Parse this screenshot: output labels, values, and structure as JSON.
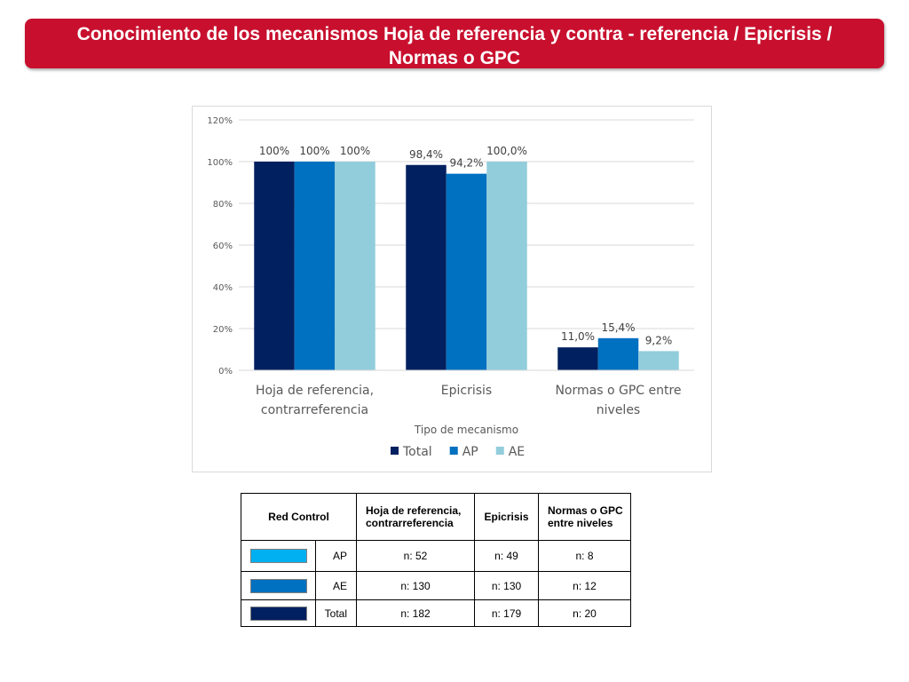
{
  "header": {
    "title": "Conocimiento de los mecanismos Hoja de referencia y contra - referencia / Epicrisis / Normas o GPC"
  },
  "colors": {
    "banner": "#c8102e",
    "total": "#002060",
    "ap": "#0070c0",
    "ae": "#92cddc",
    "table_ap_swatch": "#00b0f0",
    "table_ae_swatch": "#0070c0",
    "table_total_swatch": "#002060"
  },
  "chart_data": {
    "type": "bar",
    "categories": [
      [
        "Hoja de referencia,",
        "contrarreferencia"
      ],
      [
        "Epicrisis"
      ],
      [
        "Normas o GPC entre",
        "niveles"
      ]
    ],
    "series": [
      {
        "name": "Total",
        "color": "#002060",
        "values": [
          100,
          98.4,
          11.0
        ],
        "labels": [
          "100%",
          "98,4%",
          "11,0%"
        ]
      },
      {
        "name": "AP",
        "color": "#0070c0",
        "values": [
          100,
          94.2,
          15.4
        ],
        "labels": [
          "100%",
          "94,2%",
          "15,4%"
        ]
      },
      {
        "name": "AE",
        "color": "#92cddc",
        "values": [
          100,
          100.0,
          9.2
        ],
        "labels": [
          "100%",
          "100,0%",
          "9,2%"
        ]
      }
    ],
    "y_ticks": [
      "0%",
      "20%",
      "40%",
      "60%",
      "80%",
      "100%",
      "120%"
    ],
    "ylim": [
      0,
      120
    ],
    "xlabel": "Tipo de mecanismo",
    "ylabel": "",
    "grid": true,
    "legend_position": "bottom"
  },
  "table": {
    "headers": {
      "red": "Red Control",
      "hoja": "Hoja de referencia, contrarreferencia",
      "epicrisis": "Epicrisis",
      "normas": "Normas o GPC entre niveles"
    },
    "rows": [
      {
        "group": "AP",
        "swatch": "#00b0f0",
        "hoja": "n: 52",
        "epicrisis": "n: 49",
        "normas": "n: 8"
      },
      {
        "group": "AE",
        "swatch": "#0070c0",
        "hoja": "n: 130",
        "epicrisis": "n: 130",
        "normas": "n: 12"
      },
      {
        "group": "Total",
        "swatch": "#002060",
        "hoja": "n: 182",
        "epicrisis": "n: 179",
        "normas": "n: 20"
      }
    ]
  }
}
